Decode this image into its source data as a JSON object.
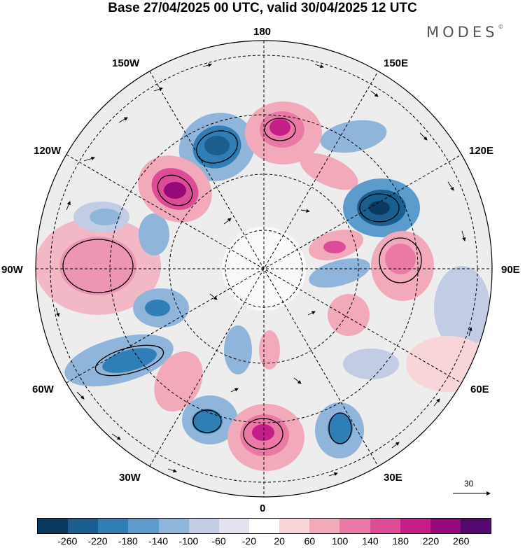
{
  "title": "Base 27/04/2025 00 UTC, valid 30/04/2025 12 UTC",
  "logo": {
    "text": "MODES",
    "mark": "©"
  },
  "longitude_labels": {
    "top": "180",
    "bottom": "0",
    "left": "90W",
    "right": "90E",
    "upper_left_1": "150W",
    "upper_left_2": "120W",
    "upper_right_1": "150E",
    "upper_right_2": "120E",
    "lower_left_1": "60W",
    "lower_left_2": "30W",
    "lower_right_1": "60E",
    "lower_right_2": "30E"
  },
  "vector_reference": {
    "value": "30"
  },
  "colorbar": {
    "colors": [
      "#0c3a5e",
      "#1a5e8f",
      "#2f7fb6",
      "#5b9ccc",
      "#8fb5da",
      "#c3cce5",
      "#e4e2ef",
      "#ffffff",
      "#f8d5d9",
      "#f2aabb",
      "#ea7aa5",
      "#dc4c97",
      "#c41f88",
      "#950a78",
      "#55086e"
    ],
    "tick_labels": [
      "-260",
      "-220",
      "-180",
      "-140",
      "-100",
      "-60",
      "-20",
      "20",
      "60",
      "100",
      "140",
      "180",
      "220",
      "260"
    ]
  },
  "anomaly_colors": {
    "negative_strong": "#1a5e8f",
    "negative_mid": "#5b9ccc",
    "negative_weak": "#c3cce5",
    "positive_weak": "#f8d5d9",
    "positive_mid": "#ea7aa5",
    "positive_strong": "#c41f88"
  }
}
